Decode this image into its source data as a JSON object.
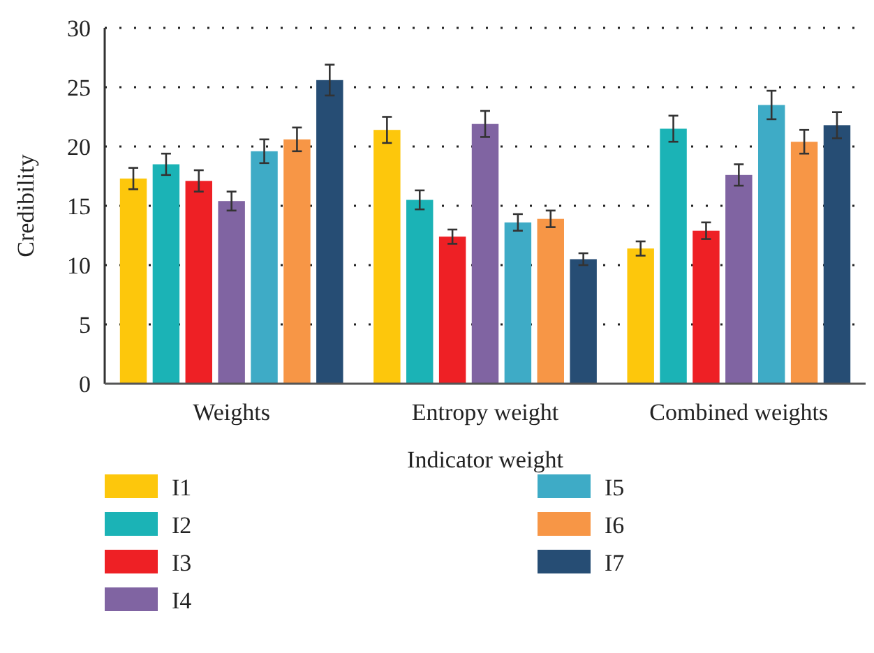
{
  "chart_data": {
    "type": "bar",
    "xlabel": "Indicator weight",
    "ylabel": "Credibility",
    "categories": [
      "Weights",
      "Entropy weight",
      "Combined weights"
    ],
    "series": [
      {
        "name": "I1",
        "color": "#fdc70c",
        "values": [
          17.3,
          21.4,
          11.4
        ],
        "errors": [
          0.9,
          1.1,
          0.6
        ]
      },
      {
        "name": "I2",
        "color": "#1bb3b6",
        "values": [
          18.5,
          15.5,
          21.5
        ],
        "errors": [
          0.9,
          0.8,
          1.1
        ]
      },
      {
        "name": "I3",
        "color": "#ee2025",
        "values": [
          17.1,
          12.4,
          12.9
        ],
        "errors": [
          0.9,
          0.6,
          0.7
        ]
      },
      {
        "name": "I4",
        "color": "#8064a2",
        "values": [
          15.4,
          21.9,
          17.6
        ],
        "errors": [
          0.8,
          1.1,
          0.9
        ]
      },
      {
        "name": "I5",
        "color": "#3eabc6",
        "values": [
          19.6,
          13.6,
          23.5
        ],
        "errors": [
          1.0,
          0.7,
          1.2
        ]
      },
      {
        "name": "I6",
        "color": "#f79646",
        "values": [
          20.6,
          13.9,
          20.4
        ],
        "errors": [
          1.0,
          0.7,
          1.0
        ]
      },
      {
        "name": "I7",
        "color": "#264d74",
        "values": [
          25.6,
          10.5,
          21.8
        ],
        "errors": [
          1.3,
          0.5,
          1.1
        ]
      }
    ],
    "ylim": [
      0,
      30
    ],
    "yticks": [
      0,
      5,
      10,
      15,
      20,
      25,
      30
    ],
    "grid": "y",
    "legend": "bottom"
  }
}
